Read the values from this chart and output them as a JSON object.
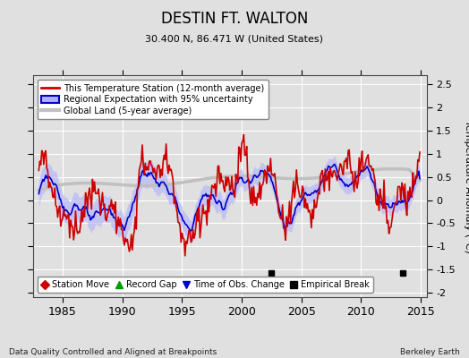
{
  "title": "DESTIN FT. WALTON",
  "subtitle": "30.400 N, 86.471 W (United States)",
  "xlabel_bottom": "Data Quality Controlled and Aligned at Breakpoints",
  "xlabel_right": "Berkeley Earth",
  "ylabel_right": "Temperature Anomaly (°C)",
  "xlim": [
    1982.5,
    2015.5
  ],
  "ylim": [
    -2.1,
    2.7
  ],
  "yticks": [
    -2,
    -1.5,
    -1,
    -0.5,
    0,
    0.5,
    1,
    1.5,
    2,
    2.5
  ],
  "xticks": [
    1985,
    1990,
    1995,
    2000,
    2005,
    2010,
    2015
  ],
  "bg_color": "#e0e0e0",
  "plot_bg_color": "#e0e0e0",
  "grid_color": "#ffffff",
  "uncertainty_color": "#b0b0ff",
  "regional_color": "#0000cc",
  "station_color": "#cc0000",
  "global_color": "#c0c0c0",
  "empirical_break_years": [
    2002.5,
    2013.5
  ],
  "empirical_break_y": -1.58,
  "legend_items": [
    {
      "label": "This Temperature Station (12-month average)",
      "color": "#cc0000",
      "lw": 2
    },
    {
      "label": "Regional Expectation with 95% uncertainty",
      "color": "#0000cc",
      "lw": 1.5
    },
    {
      "label": "Global Land (5-year average)",
      "color": "#c0c0c0",
      "lw": 3
    }
  ],
  "marker_legend": [
    {
      "label": "Station Move",
      "color": "#cc0000",
      "marker": "D"
    },
    {
      "label": "Record Gap",
      "color": "#009900",
      "marker": "^"
    },
    {
      "label": "Time of Obs. Change",
      "color": "#0000cc",
      "marker": "v"
    },
    {
      "label": "Empirical Break",
      "color": "#000000",
      "marker": "s"
    }
  ]
}
